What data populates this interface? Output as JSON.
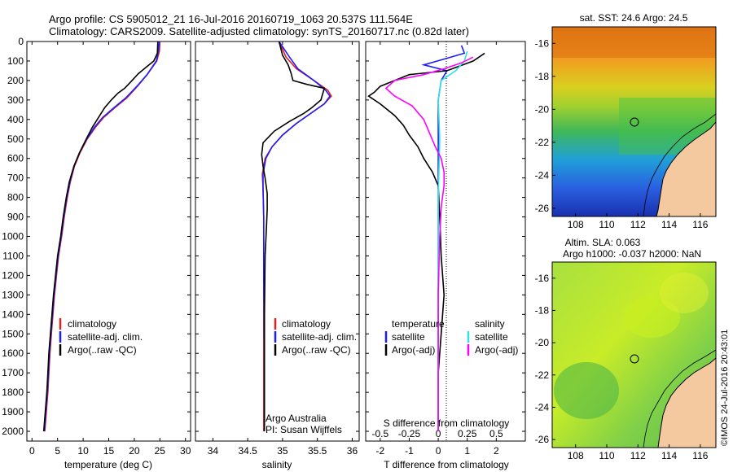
{
  "header": {
    "line1": "Argo profile: CS 5905012_21 16-Jul-2016 20160719_1063 20.537S 111.564E",
    "line2": "Climatology: CARS2009. Satellite-adjusted climatology: synTS_20160717.nc (0.82d later)"
  },
  "colors": {
    "climatology": "#e02020",
    "satellite": "#1c1cff",
    "argo": "#000000",
    "satellite_s": "#30e0e8",
    "argo_s": "#ff00ff",
    "land": "#f4c9a0"
  },
  "chart_data": [
    {
      "type": "line",
      "xlabel": "temperature (deg C)",
      "xlim": [
        -1,
        31
      ],
      "xticks": [
        0,
        5,
        10,
        15,
        20,
        25,
        30
      ],
      "ylim": [
        0,
        2050
      ],
      "yticks": [
        0,
        100,
        200,
        300,
        400,
        500,
        600,
        700,
        800,
        900,
        1000,
        1100,
        1200,
        1300,
        1400,
        1500,
        1600,
        1700,
        1800,
        1900,
        2000
      ],
      "legend": [
        "climatology",
        "satellite-adj. clim.",
        "Argo(..raw -QC)"
      ],
      "series": [
        {
          "name": "climatology",
          "color": "#e02020",
          "points": [
            [
              25,
              0
            ],
            [
              24.9,
              50
            ],
            [
              24.4,
              100
            ],
            [
              22.5,
              170
            ],
            [
              20.6,
              230
            ],
            [
              18.5,
              290
            ],
            [
              16.2,
              340
            ],
            [
              14,
              390
            ],
            [
              12.4,
              440
            ],
            [
              10.8,
              500
            ],
            [
              9.4,
              570
            ],
            [
              8.3,
              640
            ],
            [
              7.5,
              720
            ],
            [
              6.9,
              800
            ],
            [
              6.3,
              900
            ],
            [
              5.8,
              1000
            ],
            [
              5.2,
              1100
            ],
            [
              4.8,
              1200
            ],
            [
              4.4,
              1300
            ],
            [
              4.1,
              1400
            ],
            [
              3.8,
              1500
            ],
            [
              3.5,
              1600
            ],
            [
              3.3,
              1700
            ],
            [
              3.1,
              1800
            ],
            [
              2.8,
              1900
            ],
            [
              2.5,
              2000
            ]
          ]
        },
        {
          "name": "satellite-adj. clim.",
          "color": "#1c1cff",
          "points": [
            [
              24.9,
              0
            ],
            [
              24.7,
              50
            ],
            [
              24.3,
              100
            ],
            [
              22.5,
              170
            ],
            [
              20.5,
              230
            ],
            [
              18.3,
              290
            ],
            [
              16,
              340
            ],
            [
              13.8,
              390
            ],
            [
              12.2,
              440
            ],
            [
              10.7,
              500
            ],
            [
              9.3,
              570
            ],
            [
              8.2,
              640
            ],
            [
              7.4,
              720
            ],
            [
              6.8,
              800
            ],
            [
              6.2,
              900
            ],
            [
              5.7,
              1000
            ],
            [
              5.1,
              1100
            ],
            [
              4.7,
              1200
            ],
            [
              4.3,
              1300
            ],
            [
              4,
              1400
            ],
            [
              3.7,
              1500
            ],
            [
              3.4,
              1600
            ],
            [
              3.2,
              1700
            ],
            [
              3,
              1800
            ],
            [
              2.7,
              1900
            ],
            [
              2.4,
              2000
            ]
          ]
        },
        {
          "name": "Argo(..raw -QC)",
          "color": "#000000",
          "points": [
            [
              24.6,
              0
            ],
            [
              24.5,
              60
            ],
            [
              23.8,
              100
            ],
            [
              22.4,
              130
            ],
            [
              20.8,
              165
            ],
            [
              19.2,
              210
            ],
            [
              18.1,
              240
            ],
            [
              16.8,
              265
            ],
            [
              15.5,
              300
            ],
            [
              14.2,
              340
            ],
            [
              13,
              390
            ],
            [
              11.8,
              440
            ],
            [
              10.6,
              500
            ],
            [
              9.3,
              570
            ],
            [
              8.2,
              640
            ],
            [
              7.3,
              720
            ],
            [
              6.7,
              800
            ],
            [
              6.1,
              900
            ],
            [
              5.6,
              1000
            ],
            [
              5,
              1100
            ],
            [
              4.6,
              1200
            ],
            [
              4.2,
              1300
            ],
            [
              3.9,
              1400
            ],
            [
              3.6,
              1500
            ],
            [
              3.3,
              1600
            ],
            [
              3.1,
              1700
            ],
            [
              2.9,
              1800
            ],
            [
              2.6,
              1900
            ],
            [
              2.3,
              2000
            ]
          ]
        }
      ]
    },
    {
      "type": "line",
      "xlabel": "salinity",
      "xlim": [
        33.75,
        36.1
      ],
      "xticks": [
        34,
        34.5,
        35,
        35.5,
        36
      ],
      "ylim": [
        0,
        2050
      ],
      "legend": [
        "climatology",
        "satellite-adj. clim.",
        "Argo(..raw -QC)"
      ],
      "notes": [
        "Argo Australia",
        "PI: Susan Wijffels"
      ],
      "series": [
        {
          "name": "climatology",
          "color": "#e02020",
          "points": [
            [
              34.95,
              0
            ],
            [
              35.05,
              80
            ],
            [
              35.2,
              140
            ],
            [
              35.45,
              200
            ],
            [
              35.65,
              250
            ],
            [
              35.7,
              280
            ],
            [
              35.6,
              320
            ],
            [
              35.4,
              370
            ],
            [
              35.2,
              420
            ],
            [
              35.0,
              480
            ],
            [
              34.85,
              540
            ],
            [
              34.75,
              600
            ],
            [
              34.71,
              680
            ],
            [
              34.72,
              760
            ],
            [
              34.73,
              900
            ],
            [
              34.73,
              1200
            ],
            [
              34.73,
              1600
            ],
            [
              34.73,
              2000
            ]
          ]
        },
        {
          "name": "satellite-adj. clim.",
          "color": "#1c1cff",
          "points": [
            [
              34.95,
              0
            ],
            [
              35.1,
              80
            ],
            [
              35.22,
              140
            ],
            [
              35.45,
              200
            ],
            [
              35.62,
              250
            ],
            [
              35.68,
              280
            ],
            [
              35.6,
              320
            ],
            [
              35.4,
              370
            ],
            [
              35.2,
              420
            ],
            [
              35.0,
              480
            ],
            [
              34.85,
              540
            ],
            [
              34.76,
              600
            ],
            [
              34.72,
              680
            ],
            [
              34.72,
              760
            ],
            [
              34.73,
              900
            ],
            [
              34.73,
              1200
            ],
            [
              34.74,
              1600
            ],
            [
              34.74,
              2000
            ]
          ]
        },
        {
          "name": "Argo(..raw -QC)",
          "color": "#000000",
          "points": [
            [
              34.95,
              0
            ],
            [
              35.0,
              70
            ],
            [
              35.08,
              120
            ],
            [
              35.12,
              160
            ],
            [
              35.15,
              200
            ],
            [
              35.35,
              220
            ],
            [
              35.6,
              240
            ],
            [
              35.55,
              300
            ],
            [
              35.42,
              340
            ],
            [
              35.3,
              370
            ],
            [
              35.1,
              410
            ],
            [
              34.88,
              460
            ],
            [
              34.72,
              520
            ],
            [
              34.7,
              580
            ],
            [
              34.72,
              640
            ],
            [
              34.75,
              700
            ],
            [
              34.78,
              780
            ],
            [
              34.78,
              860
            ],
            [
              34.77,
              950
            ],
            [
              34.75,
              1100
            ],
            [
              34.74,
              1400
            ],
            [
              34.74,
              1700
            ],
            [
              34.74,
              2000
            ]
          ]
        }
      ]
    },
    {
      "type": "line",
      "xlabel_bottom": "T difference from climatology",
      "xlabel_top": "S difference from climatology",
      "xticks_T": [
        -2,
        -1,
        0,
        1,
        2
      ],
      "xticks_S": [
        "-0.5",
        "-0.25",
        "0",
        "0.25",
        "0.5"
      ],
      "xlim": [
        -2.5,
        3.0
      ],
      "ylim": [
        0,
        2050
      ],
      "legend_temperature": {
        "title": "temperature",
        "items": [
          "satellite",
          "Argo(-adj)"
        ]
      },
      "legend_salinity": {
        "title": "salinity",
        "items": [
          "satellite",
          "Argo(-adj)"
        ]
      },
      "series": [
        {
          "name": "temperature satellite",
          "color": "#1c1cff",
          "points": [
            [
              0.8,
              20
            ],
            [
              0.9,
              60
            ],
            [
              0.2,
              90
            ],
            [
              -0.5,
              120
            ],
            [
              0.3,
              150
            ],
            [
              0.1,
              200
            ],
            [
              0,
              300
            ],
            [
              0,
              500
            ],
            [
              0,
              800
            ],
            [
              0,
              1200
            ],
            [
              0,
              1600
            ],
            [
              0,
              2000
            ]
          ]
        },
        {
          "name": "temperature Argo(-adj)",
          "color": "#000000",
          "points": [
            [
              1.6,
              60
            ],
            [
              1.2,
              100
            ],
            [
              0.3,
              150
            ],
            [
              -1.0,
              170
            ],
            [
              -1.5,
              200
            ],
            [
              -2.0,
              230
            ],
            [
              -2.2,
              260
            ],
            [
              -2.4,
              280
            ],
            [
              -2.0,
              320
            ],
            [
              -1.5,
              380
            ],
            [
              -1.2,
              430
            ],
            [
              -1.0,
              480
            ],
            [
              -0.7,
              540
            ],
            [
              -0.5,
              600
            ],
            [
              -0.2,
              670
            ],
            [
              0,
              740
            ],
            [
              0.05,
              900
            ],
            [
              0.1,
              1100
            ],
            [
              0.2,
              1300
            ],
            [
              0.1,
              1500
            ],
            [
              0,
              1700
            ],
            [
              0,
              2000
            ]
          ]
        },
        {
          "name": "salinity satellite",
          "color": "#30e0e8",
          "points": [
            [
              1.0,
              50
            ],
            [
              0.9,
              100
            ],
            [
              0.6,
              150
            ],
            [
              0.1,
              200
            ],
            [
              0,
              300
            ],
            [
              0.05,
              500
            ],
            [
              0,
              800
            ],
            [
              0,
              1200
            ],
            [
              0,
              1600
            ],
            [
              0,
              2000
            ]
          ]
        },
        {
          "name": "salinity Argo(-adj)",
          "color": "#ff00ff",
          "points": [
            [
              1.2,
              80
            ],
            [
              0.8,
              110
            ],
            [
              0.2,
              140
            ],
            [
              -0.5,
              170
            ],
            [
              -1.5,
              200
            ],
            [
              -1.8,
              240
            ],
            [
              -1.5,
              280
            ],
            [
              -0.9,
              330
            ],
            [
              -0.5,
              400
            ],
            [
              -0.3,
              470
            ],
            [
              -0.1,
              540
            ],
            [
              0.1,
              600
            ],
            [
              0.2,
              670
            ],
            [
              0.2,
              740
            ],
            [
              0.1,
              850
            ],
            [
              0.05,
              1000
            ],
            [
              0,
              1300
            ],
            [
              0,
              1600
            ],
            [
              0,
              2000
            ]
          ]
        }
      ]
    }
  ],
  "maps": {
    "top": {
      "title": "sat. SST: 24.6 Argo: 24.5",
      "xticks": [
        "108",
        "110",
        "112",
        "114",
        "116"
      ],
      "yticks": [
        "-16",
        "-18",
        "-20",
        "-22",
        "-24",
        "-26"
      ],
      "marker": [
        111.564,
        -20.537
      ]
    },
    "bottom": {
      "title1": "Altim. SLA: 0.063",
      "title2": "Argo h1000: -0.037 h2000: NaN",
      "xticks": [
        "108",
        "110",
        "112",
        "114",
        "116"
      ],
      "yticks": [
        "-16",
        "-18",
        "-20",
        "-22",
        "-24",
        "-26"
      ],
      "marker": [
        111.564,
        -20.537
      ]
    },
    "footer": "©IMOS 24-Jul-2016 20:43:01"
  }
}
